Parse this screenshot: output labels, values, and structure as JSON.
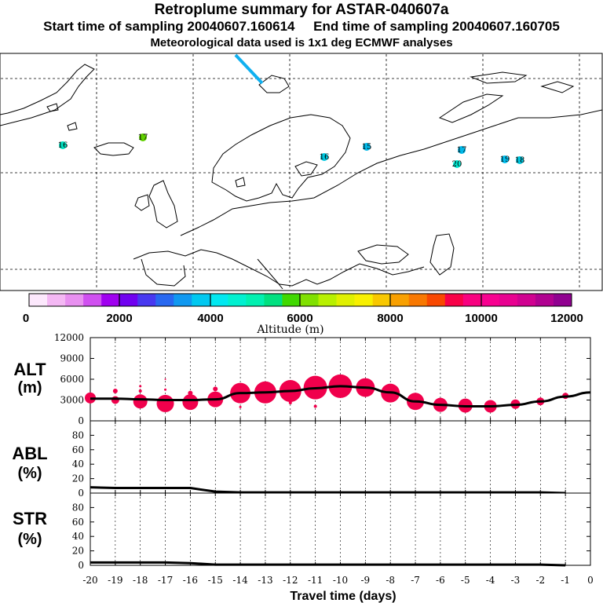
{
  "header": {
    "title": "Retroplume summary for ASTAR-040607a",
    "start_label": "Start time of sampling 20040607.160614",
    "end_label": "End time of sampling 20040607.160705",
    "met_label": "Meteorological data used is 1x1 deg ECMWF analyses"
  },
  "map": {
    "labels": [
      {
        "text": "16",
        "color": "#00e0c0"
      },
      {
        "text": "17",
        "color": "#60d000"
      },
      {
        "text": "16",
        "color": "#00c8e0"
      },
      {
        "text": "15",
        "color": "#00b8e8"
      },
      {
        "text": "17",
        "color": "#00b8e8"
      },
      {
        "text": "20",
        "color": "#00e8d0"
      },
      {
        "text": "19",
        "color": "#00c0f0"
      },
      {
        "text": "18",
        "color": "#00c8e0"
      }
    ]
  },
  "colorbar": {
    "title": "Altitude (m)",
    "tick_labels": [
      "0",
      "2000",
      "4000",
      "6000",
      "8000",
      "10000",
      "12000"
    ],
    "colors": [
      "#fce8fc",
      "#f4b8f4",
      "#e890f0",
      "#d050f0",
      "#a000f0",
      "#7000f0",
      "#4838f0",
      "#2868f0",
      "#1098f0",
      "#00c8f0",
      "#00e8f0",
      "#00f0d0",
      "#00f0b0",
      "#00e080",
      "#40d800",
      "#80e000",
      "#b8f000",
      "#e0f000",
      "#f8f000",
      "#f8c800",
      "#f8a000",
      "#f87800",
      "#f84800",
      "#f80048",
      "#f80080",
      "#f80090",
      "#e80090",
      "#d00090",
      "#b00090",
      "#900090"
    ]
  },
  "chart_data": [
    {
      "type": "line",
      "panel": "ALT",
      "ylabel": "ALT",
      "yunit": "(m)",
      "ylim": [
        0,
        12000
      ],
      "yticks": [
        "12000",
        "9000",
        "6000",
        "3000",
        "0"
      ],
      "x": [
        -20,
        -19,
        -18,
        -17,
        -16,
        -15,
        -14,
        -13,
        -12,
        -11,
        -10,
        -9,
        -8,
        -7,
        -6,
        -5,
        -4,
        -3,
        -2,
        -1,
        0
      ],
      "line_values": [
        3200,
        3200,
        3100,
        3000,
        3000,
        3100,
        4000,
        4100,
        4300,
        4700,
        5000,
        4800,
        4100,
        2800,
        2300,
        2100,
        2100,
        2300,
        2800,
        3500,
        4100
      ],
      "bubbles": [
        {
          "x": -20,
          "y": 3300,
          "r": 7
        },
        {
          "x": -19,
          "y": 4300,
          "r": 3
        },
        {
          "x": -19,
          "y": 3000,
          "r": 5
        },
        {
          "x": -18,
          "y": 2800,
          "r": 9
        },
        {
          "x": -18,
          "y": 4300,
          "r": 2
        },
        {
          "x": -18,
          "y": 5000,
          "r": 1.5
        },
        {
          "x": -17,
          "y": 2500,
          "r": 11
        },
        {
          "x": -17,
          "y": 4500,
          "r": 1.5
        },
        {
          "x": -17,
          "y": 6000,
          "r": 1
        },
        {
          "x": -16,
          "y": 2700,
          "r": 10
        },
        {
          "x": -16,
          "y": 4000,
          "r": 3
        },
        {
          "x": -15,
          "y": 3100,
          "r": 10
        },
        {
          "x": -15,
          "y": 4600,
          "r": 3
        },
        {
          "x": -14,
          "y": 4000,
          "r": 13
        },
        {
          "x": -14,
          "y": 2000,
          "r": 1.5
        },
        {
          "x": -13,
          "y": 4100,
          "r": 14
        },
        {
          "x": -12,
          "y": 4300,
          "r": 14
        },
        {
          "x": -12,
          "y": 2600,
          "r": 2
        },
        {
          "x": -11,
          "y": 4800,
          "r": 15
        },
        {
          "x": -11,
          "y": 2100,
          "r": 2
        },
        {
          "x": -10,
          "y": 5000,
          "r": 15
        },
        {
          "x": -9,
          "y": 4800,
          "r": 12
        },
        {
          "x": -8,
          "y": 4000,
          "r": 12
        },
        {
          "x": -7,
          "y": 2800,
          "r": 11
        },
        {
          "x": -6,
          "y": 2300,
          "r": 9
        },
        {
          "x": -5,
          "y": 2200,
          "r": 9
        },
        {
          "x": -4,
          "y": 2100,
          "r": 8
        },
        {
          "x": -3,
          "y": 2400,
          "r": 6
        },
        {
          "x": -2,
          "y": 2800,
          "r": 5
        },
        {
          "x": -1,
          "y": 3600,
          "r": 4
        }
      ]
    },
    {
      "type": "line",
      "panel": "ABL",
      "ylabel": "ABL",
      "yunit": "(%)",
      "ylim": [
        0,
        100
      ],
      "yticks": [
        "80",
        "60",
        "40",
        "20",
        "0"
      ],
      "x": [
        -20,
        -19,
        -18,
        -17,
        -16,
        -15,
        -14,
        -13,
        -12,
        -11,
        -10,
        -9,
        -8,
        -7,
        -6,
        -5,
        -4,
        -3,
        -2,
        -1
      ],
      "values": [
        8,
        7,
        7,
        7,
        7,
        2,
        1,
        1,
        1,
        1,
        1,
        1,
        1,
        1,
        1,
        1,
        1,
        1,
        1,
        0
      ]
    },
    {
      "type": "line",
      "panel": "STR",
      "ylabel": "STR",
      "yunit": "(%)",
      "ylim": [
        0,
        100
      ],
      "yticks": [
        "80",
        "60",
        "40",
        "20",
        "0"
      ],
      "x": [
        -20,
        -19,
        -18,
        -17,
        -16,
        -15,
        -14,
        -13,
        -12,
        -11,
        -10,
        -9,
        -8,
        -7,
        -6,
        -5,
        -4,
        -3,
        -2,
        -1
      ],
      "values": [
        4,
        4,
        4,
        4,
        3,
        1,
        1,
        1,
        1,
        1,
        1,
        1,
        1,
        1,
        1,
        1,
        1,
        1,
        1,
        0
      ],
      "xlabel": "Travel time (days)",
      "xticks": [
        "-20",
        "-19",
        "-18",
        "-17",
        "-16",
        "-15",
        "-14",
        "-13",
        "-12",
        "-11",
        "-10",
        "-9",
        "-8",
        "-7",
        "-6",
        "-5",
        "-4",
        "-3",
        "-2",
        "-1",
        "0"
      ]
    }
  ]
}
